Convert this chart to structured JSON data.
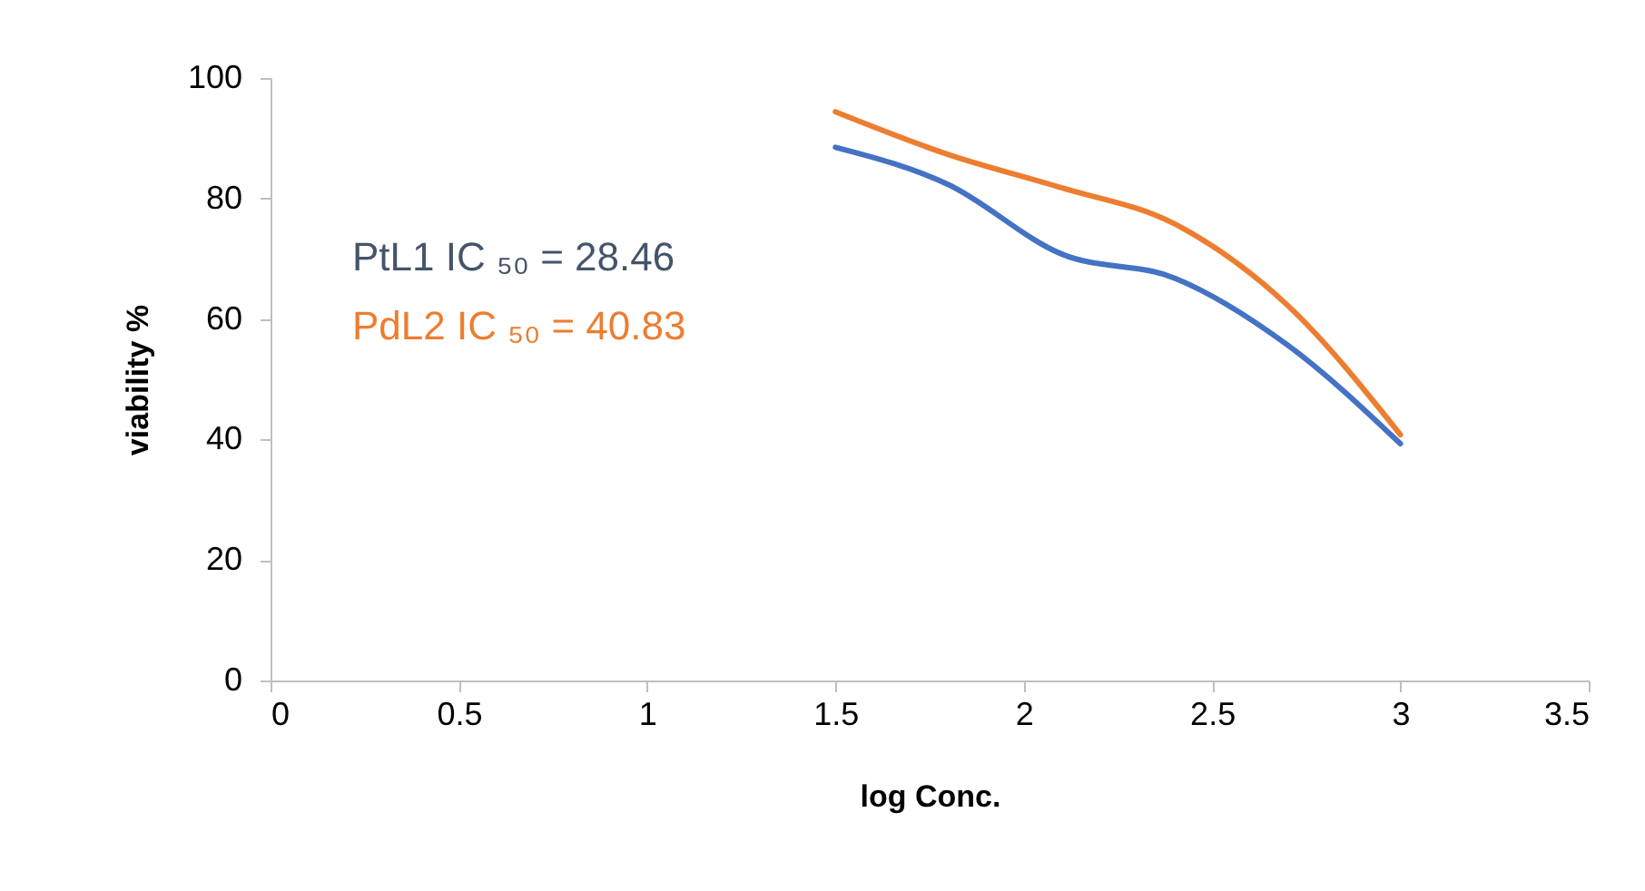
{
  "chart_data": {
    "type": "line",
    "xlabel": "log Conc.",
    "ylabel": "viability %",
    "xlim": [
      0,
      3.5
    ],
    "xticks": [
      0,
      0.5,
      1,
      1.5,
      2,
      2.5,
      3,
      3.5
    ],
    "ylim": [
      0,
      100
    ],
    "yticks": [
      0,
      20,
      40,
      60,
      80,
      100
    ],
    "grid": false,
    "marker": "none",
    "line_style": "solid",
    "x": [
      1.5,
      1.8,
      2.1,
      2.4,
      2.7,
      3
    ],
    "series": [
      {
        "color": "#4472c4",
        "values": [
          88.5,
          82.3,
          70.8,
          66.8,
          55.7,
          39.3
        ]
      },
      {
        "color": "#ed7d31",
        "values": [
          94.4,
          87.3,
          81.8,
          75.8,
          62.3,
          40.8
        ]
      }
    ],
    "annotations": [
      "PtL1 IC ₅₀ = 28.46",
      "PdL2 IC ₅₀ = 40.83"
    ]
  }
}
